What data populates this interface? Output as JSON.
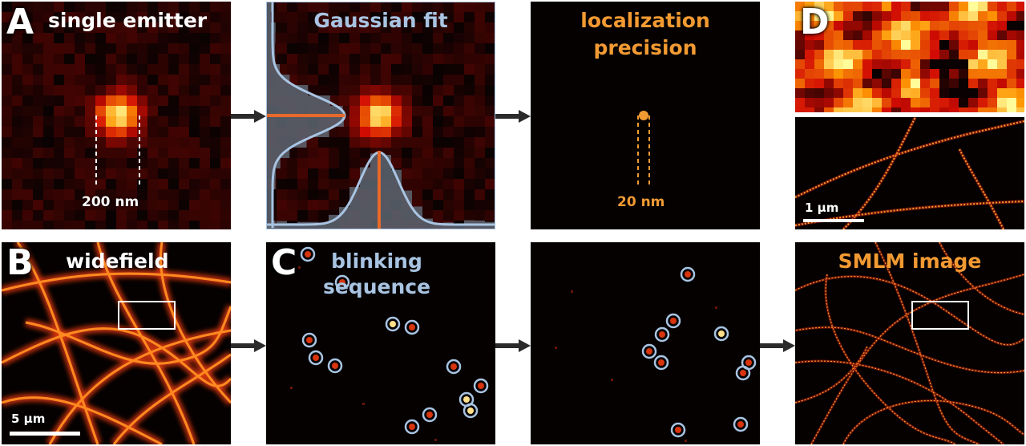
{
  "panel_a": {
    "letter": "A",
    "title": "single emitter",
    "size_label": "200 nm"
  },
  "panel_fit": {
    "title": "Gaussian fit"
  },
  "panel_precision": {
    "title_line1": "localization",
    "title_line2": "precision",
    "size_label": "20 nm"
  },
  "panel_d": {
    "letter": "D",
    "scalebar_label": "1 µm"
  },
  "panel_b": {
    "letter": "B",
    "title": "widefield",
    "scalebar_label": "5 µm"
  },
  "panel_c": {
    "letter": "C",
    "title_line1": "blinking",
    "title_line2": "sequence"
  },
  "panel_smlm": {
    "title": "SMLM image"
  },
  "colors": {
    "panel_bg": "#050101",
    "hot_low": "#5a0a04",
    "hot_mid": "#e03a10",
    "hot_high": "#fff2a0",
    "label_blue": "#a9c4e2",
    "label_orange": "#f29a32",
    "fit_line": "#e8692a",
    "arrow": "#2b2b2b"
  },
  "icons": [
    "arrow-right-icon",
    "detection-circle-icon"
  ]
}
